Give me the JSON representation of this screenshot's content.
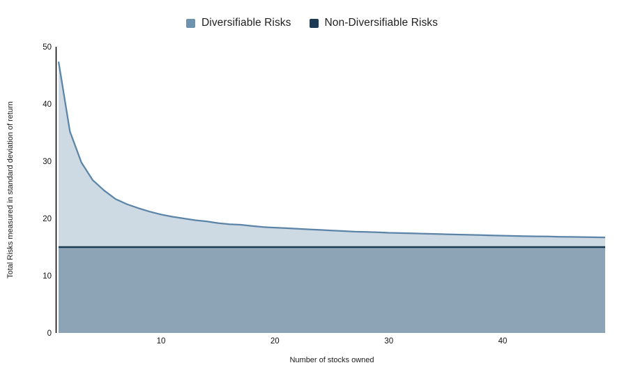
{
  "chart_data": {
    "type": "area",
    "title": "",
    "xlabel": "Number of stocks owned",
    "ylabel": "Total Risks measured in standard deviation of return",
    "xlim": [
      1,
      49
    ],
    "ylim": [
      0,
      50
    ],
    "x_ticks": [
      10,
      20,
      30,
      40
    ],
    "y_ticks": [
      0,
      10,
      20,
      30,
      40,
      50
    ],
    "grid": false,
    "legend_position": "top",
    "x": [
      1,
      2,
      3,
      4,
      5,
      6,
      7,
      8,
      9,
      10,
      11,
      12,
      13,
      14,
      15,
      16,
      17,
      18,
      19,
      20,
      21,
      22,
      23,
      24,
      25,
      26,
      27,
      28,
      29,
      30,
      31,
      32,
      33,
      34,
      35,
      36,
      37,
      38,
      39,
      40,
      41,
      42,
      43,
      44,
      45,
      46,
      47,
      48,
      49
    ],
    "series": [
      {
        "name": "Diversifiable Risks",
        "kind": "curve-area",
        "fill_color": "#cdd9e3",
        "line_color": "#5b84a8",
        "values": [
          47.4,
          35.2,
          29.8,
          26.7,
          24.9,
          23.4,
          22.5,
          21.8,
          21.2,
          20.7,
          20.3,
          20.0,
          19.7,
          19.5,
          19.2,
          19.0,
          18.9,
          18.7,
          18.5,
          18.4,
          18.3,
          18.2,
          18.1,
          18.0,
          17.9,
          17.8,
          17.7,
          17.65,
          17.6,
          17.5,
          17.45,
          17.4,
          17.35,
          17.3,
          17.25,
          17.2,
          17.15,
          17.1,
          17.05,
          17.0,
          16.95,
          16.9,
          16.88,
          16.85,
          16.8,
          16.78,
          16.75,
          16.72,
          16.7
        ]
      },
      {
        "name": "Non-Diversifiable Risks",
        "kind": "constant-area",
        "fill_color": "#8ca4b6",
        "line_color": "#1d3a53",
        "constant_value": 15
      }
    ]
  },
  "legend": {
    "items": [
      {
        "label": "Diversifiable Risks",
        "color": "#6e93af"
      },
      {
        "label": "Non-Diversifiable Risks",
        "color": "#1f3a54"
      }
    ]
  },
  "axes": {
    "axis_line_color": "#000000",
    "background_color": "#ffffff"
  }
}
